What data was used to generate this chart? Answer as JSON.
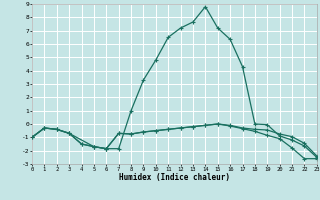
{
  "xlabel": "Humidex (Indice chaleur)",
  "background_color": "#c5e5e5",
  "grid_color": "#ffffff",
  "line_color": "#1a7060",
  "xlim": [
    0,
    23
  ],
  "ylim": [
    -3,
    9
  ],
  "xticks": [
    0,
    1,
    2,
    3,
    4,
    5,
    6,
    7,
    8,
    9,
    10,
    11,
    12,
    13,
    14,
    15,
    16,
    17,
    18,
    19,
    20,
    21,
    22,
    23
  ],
  "yticks": [
    -3,
    -2,
    -1,
    0,
    1,
    2,
    3,
    4,
    5,
    6,
    7,
    8,
    9
  ],
  "series1_x": [
    0,
    1,
    2,
    3,
    4,
    5,
    6,
    7,
    8,
    9,
    10,
    11,
    12,
    13,
    14,
    15,
    16,
    17,
    18,
    19,
    20,
    21,
    22,
    23
  ],
  "series1_y": [
    -1.0,
    -0.3,
    -0.4,
    -0.7,
    -1.5,
    -1.7,
    -1.85,
    -1.85,
    1.0,
    3.3,
    4.8,
    6.5,
    7.2,
    7.65,
    8.8,
    7.2,
    6.35,
    4.3,
    0.0,
    -0.05,
    -0.9,
    -1.2,
    -1.65,
    -2.5
  ],
  "series2_x": [
    0,
    1,
    2,
    3,
    5,
    6,
    7,
    8,
    9,
    10,
    11,
    12,
    13,
    14,
    15,
    16,
    17,
    18,
    19,
    20,
    21,
    22,
    23
  ],
  "series2_y": [
    -1.0,
    -0.3,
    -0.4,
    -0.7,
    -1.7,
    -1.85,
    -0.7,
    -0.75,
    -0.6,
    -0.5,
    -0.4,
    -0.3,
    -0.2,
    -0.1,
    0.0,
    -0.1,
    -0.3,
    -0.4,
    -0.45,
    -0.75,
    -0.95,
    -1.45,
    -2.4
  ],
  "series3_x": [
    0,
    1,
    2,
    3,
    4,
    5,
    6,
    7,
    8,
    9,
    10,
    11,
    12,
    13,
    14,
    15,
    16,
    17,
    18,
    19,
    20,
    21,
    22,
    23
  ],
  "series3_y": [
    -1.0,
    -0.3,
    -0.4,
    -0.7,
    -1.5,
    -1.7,
    -1.85,
    -0.7,
    -0.75,
    -0.6,
    -0.5,
    -0.4,
    -0.3,
    -0.2,
    -0.1,
    0.0,
    -0.15,
    -0.35,
    -0.55,
    -0.85,
    -1.1,
    -1.8,
    -2.6,
    -2.6
  ]
}
